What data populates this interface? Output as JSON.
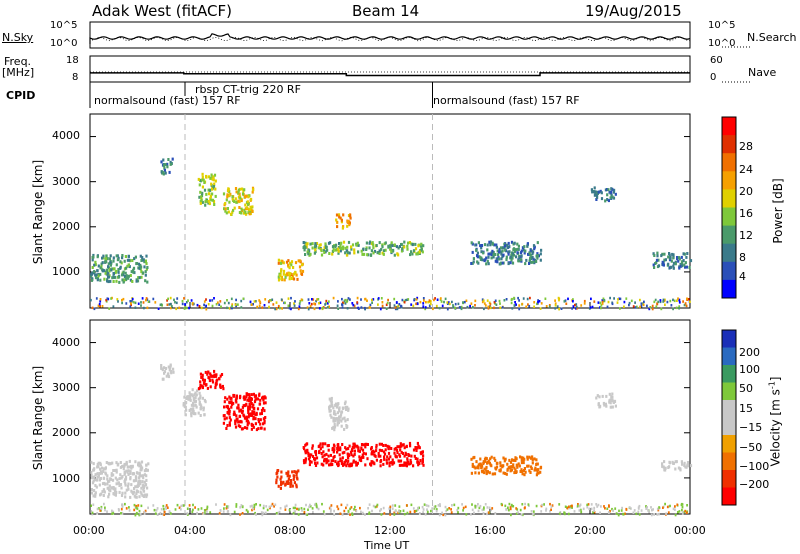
{
  "header": {
    "station": "Adak West (fitACF)",
    "beam": "Beam 14",
    "date": "19/Aug/2015"
  },
  "top_panel": {
    "left_label": "N.Sky",
    "right_label": "N.Search",
    "left_ticks": [
      "10^5",
      "10^0"
    ],
    "right_ticks": [
      "10^5",
      "10^0"
    ]
  },
  "freq_panel": {
    "left_label_1": "Freq.",
    "left_label_2": "[MHz]",
    "left_ticks": [
      "18",
      "8"
    ],
    "right_label": "Nave",
    "right_ticks": [
      "60",
      "0"
    ]
  },
  "cpid": {
    "label": "CPID",
    "segments": [
      "normalsound (fast) 157 RF",
      "rbsp CT-trig 220 RF",
      "normalsound (fast) 157 RF"
    ]
  },
  "power_panel": {
    "ylabel": "Slant Range [km]",
    "yticks": [
      "4000",
      "3000",
      "2000",
      "1000"
    ],
    "colorbar_label": "Power [dB]",
    "colorbar_ticks": [
      "28",
      "24",
      "20",
      "16",
      "12",
      "8",
      "4"
    ]
  },
  "velocity_panel": {
    "ylabel": "Slant Range [km]",
    "yticks": [
      "4000",
      "3000",
      "2000",
      "1000"
    ],
    "colorbar_label": "Velocity [m s",
    "colorbar_label_sup": "-1",
    "colorbar_label_end": "]",
    "colorbar_ticks": [
      "200",
      "100",
      "50",
      "15",
      "−15",
      "−50",
      "−100",
      "−200"
    ]
  },
  "x_axis": {
    "ticks": [
      "00:00",
      "04:00",
      "08:00",
      "12:00",
      "16:00",
      "20:00",
      "00:00"
    ],
    "label": "Time UT"
  },
  "colors": {
    "power_scale": [
      "#0000ff",
      "#2a4fb8",
      "#3a7a8a",
      "#4a9a6a",
      "#7ec83a",
      "#e0d000",
      "#f6a000",
      "#f07000",
      "#e03000",
      "#ff0000"
    ],
    "velocity_scale": [
      "#1a2fb8",
      "#2a6ac0",
      "#3a9a60",
      "#7ec83a",
      "#c8c8c8",
      "#c8c8c8",
      "#f0a000",
      "#f07000",
      "#f03000",
      "#ff0000"
    ]
  },
  "chart_data": [
    {
      "type": "line",
      "title": "",
      "series": [
        {
          "name": "N.Sky",
          "description_visible": false
        },
        {
          "name": "N.Search"
        }
      ],
      "ylim": [
        1,
        100000
      ],
      "yscale": "log"
    },
    {
      "type": "line",
      "series": [
        {
          "name": "Freq.",
          "x": [
            "00:00",
            "03:45",
            "03:45",
            "10:15",
            "10:15",
            "18:00",
            "18:00",
            "24:00"
          ],
          "values": [
            11.5,
            11.5,
            11.2,
            11.2,
            10.5,
            10.5,
            11.5,
            11.5
          ]
        },
        {
          "name": "Nave"
        }
      ],
      "ylim": [
        8,
        18
      ]
    },
    {
      "type": "heatmap",
      "quantity": "Power",
      "unit": "dB",
      "ylabel": "Slant Range [km]",
      "xlabel": "Time UT",
      "xlim": [
        "00:00",
        "24:00"
      ],
      "ylim": [
        200,
        4500
      ],
      "color_range": [
        0,
        30
      ],
      "regions": [
        {
          "t0": 0.0,
          "t1": 2.3,
          "r0": 800,
          "r1": 1400,
          "level": 10
        },
        {
          "t0": 2.8,
          "t1": 3.3,
          "r0": 3200,
          "r1": 3550,
          "level": 8
        },
        {
          "t0": 4.3,
          "t1": 5.0,
          "r0": 2500,
          "r1": 3200,
          "level": 14
        },
        {
          "t0": 5.3,
          "t1": 6.5,
          "r0": 2300,
          "r1": 2900,
          "level": 16
        },
        {
          "t0": 7.5,
          "t1": 8.5,
          "r0": 850,
          "r1": 1300,
          "level": 18
        },
        {
          "t0": 8.5,
          "t1": 13.3,
          "r0": 1400,
          "r1": 1700,
          "level": 12
        },
        {
          "t0": 9.8,
          "t1": 10.4,
          "r0": 2000,
          "r1": 2300,
          "level": 20
        },
        {
          "t0": 15.2,
          "t1": 18.0,
          "r0": 1200,
          "r1": 1700,
          "level": 8
        },
        {
          "t0": 20.0,
          "t1": 21.0,
          "r0": 2600,
          "r1": 2900,
          "level": 8
        },
        {
          "t0": 22.5,
          "t1": 24.0,
          "r0": 1100,
          "r1": 1450,
          "level": 8
        }
      ]
    },
    {
      "type": "heatmap",
      "quantity": "Velocity",
      "unit": "m s-1",
      "ylabel": "Slant Range [km]",
      "xlabel": "Time UT",
      "xlim": [
        "00:00",
        "24:00"
      ],
      "ylim": [
        200,
        4500
      ],
      "color_range": [
        -200,
        200
      ],
      "regions": [
        {
          "t0": 0.0,
          "t1": 2.3,
          "r0": 600,
          "r1": 1400,
          "level": 0
        },
        {
          "t0": 2.8,
          "t1": 3.3,
          "r0": 3200,
          "r1": 3550,
          "level": 0
        },
        {
          "t0": 3.7,
          "t1": 4.6,
          "r0": 2400,
          "r1": 3000,
          "level": 0
        },
        {
          "t0": 4.3,
          "t1": 5.3,
          "r0": 3000,
          "r1": 3400,
          "level": -200
        },
        {
          "t0": 5.3,
          "t1": 7.0,
          "r0": 2100,
          "r1": 2900,
          "level": -200
        },
        {
          "t0": 7.4,
          "t1": 8.3,
          "r0": 800,
          "r1": 1200,
          "level": -100
        },
        {
          "t0": 8.5,
          "t1": 13.3,
          "r0": 1300,
          "r1": 1800,
          "level": -200
        },
        {
          "t0": 9.5,
          "t1": 10.3,
          "r0": 2100,
          "r1": 2800,
          "level": 0
        },
        {
          "t0": 15.2,
          "t1": 18.0,
          "r0": 1100,
          "r1": 1500,
          "level": -50
        },
        {
          "t0": 20.2,
          "t1": 21.0,
          "r0": 2600,
          "r1": 2900,
          "level": 0
        },
        {
          "t0": 22.8,
          "t1": 24.0,
          "r0": 1200,
          "r1": 1400,
          "level": 0
        }
      ]
    }
  ]
}
